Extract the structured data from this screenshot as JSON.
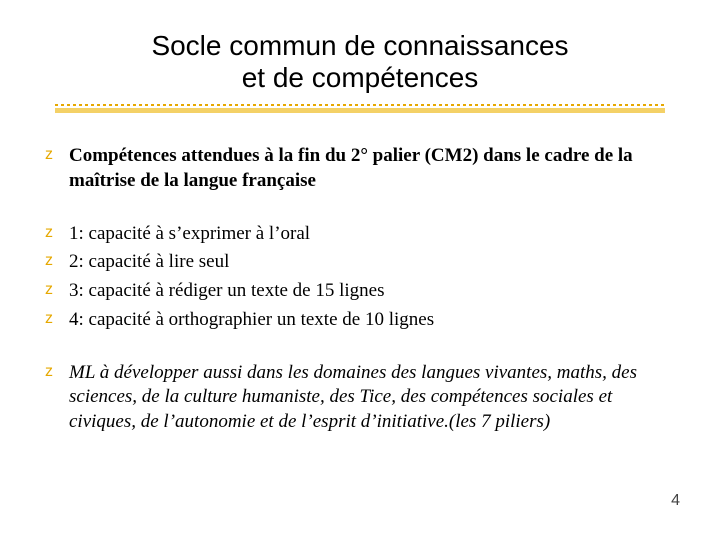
{
  "colors": {
    "background": "#ffffff",
    "title_text": "#000000",
    "body_text": "#000000",
    "bullet_marker": "#e6a800",
    "underline_thick": "#f2c94c",
    "underline_dash": "#e6a800",
    "pagenum": "#444444"
  },
  "typography": {
    "title_font": "Arial",
    "title_size_pt": 28,
    "body_font": "Times New Roman",
    "body_size_pt": 19,
    "pagenum_size_pt": 16
  },
  "title": {
    "line1": "Socle commun de connaissances",
    "line2": "et de compétences"
  },
  "bullets": {
    "marker_glyph": "z",
    "intro": "Compétences attendues à la fin du 2° palier (CM2) dans le cadre de la maîtrise de la langue française",
    "items": [
      "1: capacité à s’exprimer à l’oral",
      "2: capacité à lire seul",
      "3: capacité à rédiger un texte de 15 lignes",
      "4: capacité à orthographier un texte de 10 lignes"
    ],
    "note": "ML à développer aussi dans les domaines des langues vivantes, maths, des sciences, de la culture humaniste, des Tice, des compétences sociales et civiques, de l’autonomie et de l’esprit d’initiative.(les 7 piliers)"
  },
  "page_number": "4"
}
